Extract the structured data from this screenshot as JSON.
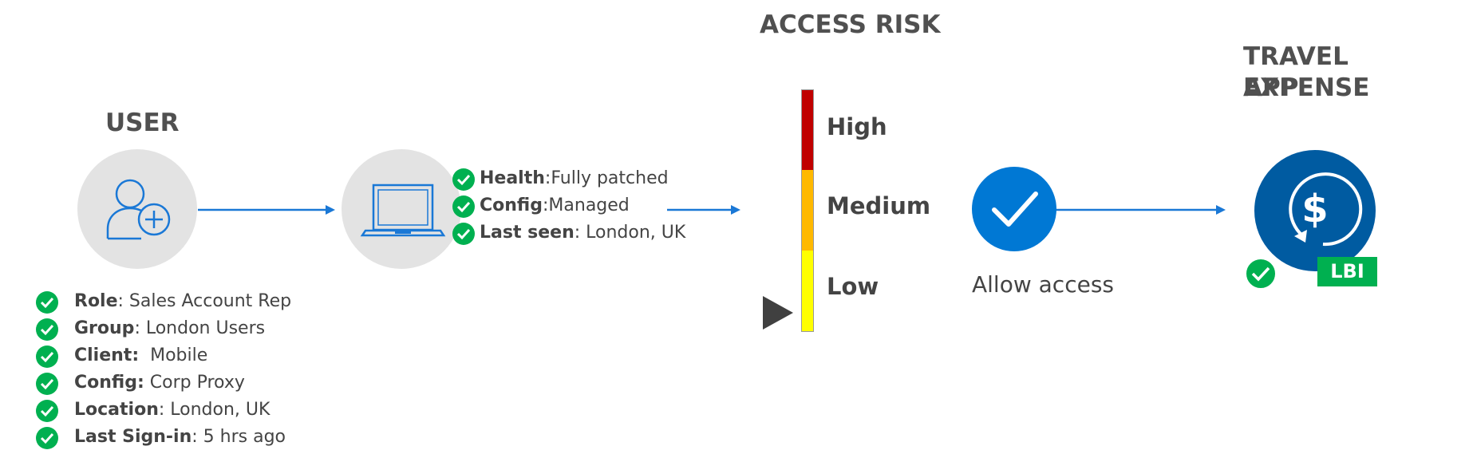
{
  "headings": {
    "user": "USER",
    "access_risk": "ACCESS RISK",
    "app_line1": "TRAVEL EXPENSE",
    "app_line2": "APP"
  },
  "device": {
    "health_label": "Health",
    "health_value": "Fully patched",
    "config_label": "Config",
    "config_value": "Managed",
    "last_seen_label": "Last seen",
    "last_seen_value": " London, UK"
  },
  "user_attributes": [
    {
      "label": "Role",
      "value": ": Sales Account Rep"
    },
    {
      "label": "Group",
      "value": ": London Users"
    },
    {
      "label": "Client:",
      "value": "  Mobile"
    },
    {
      "label": "Config:",
      "value": " Corp Proxy"
    },
    {
      "label": "Location",
      "value": ": London, UK"
    },
    {
      "label": "Last Sign-in",
      "value": ": 5 hrs ago"
    }
  ],
  "risk": {
    "levels": [
      "High",
      "Medium",
      "Low"
    ],
    "current": "Low",
    "colors": {
      "high": "#c00000",
      "medium": "#ffb900",
      "low": "#ffff00"
    }
  },
  "decision": {
    "label": "Allow access"
  },
  "app": {
    "badge": "LBI",
    "icon": "dollar-sync-icon"
  },
  "colors": {
    "accent_blue": "#0078d4",
    "dark_blue": "#005ba1",
    "check_green": "#00b050",
    "grey_circle": "#e3e3e3"
  }
}
